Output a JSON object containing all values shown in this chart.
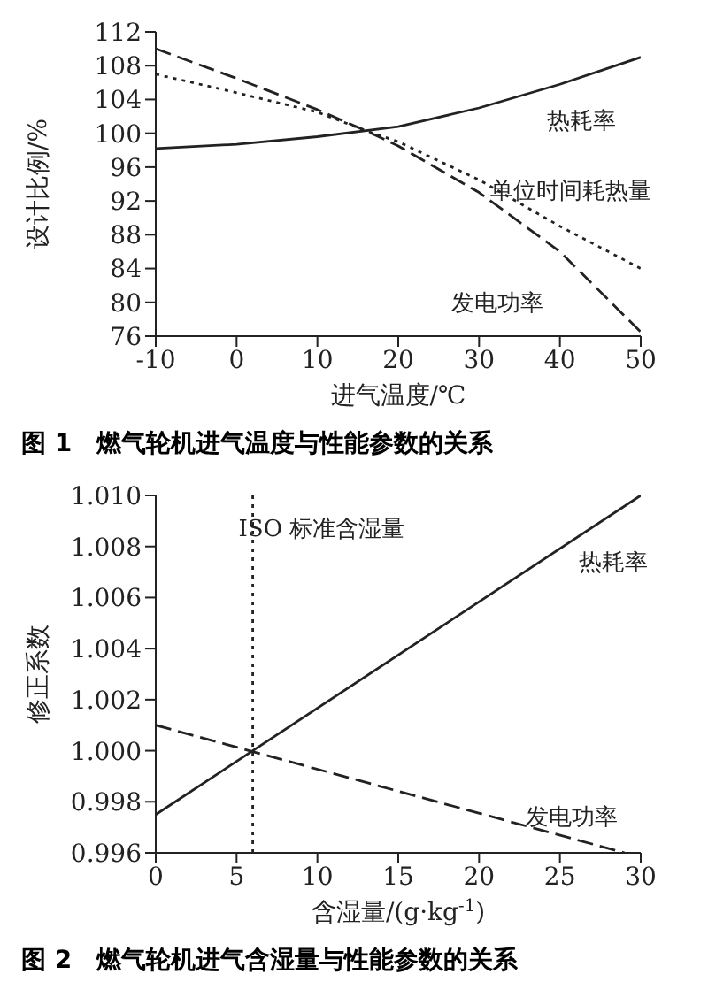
{
  "chart_data": [
    {
      "type": "line",
      "title": "图 1　燃气轮机进气温度与性能参数的关系",
      "xlabel": "进气温度/℃",
      "ylabel": "设计比例/%",
      "xlim": [
        -10,
        50
      ],
      "xticks": [
        -10,
        0,
        10,
        20,
        30,
        40,
        50
      ],
      "ylim": [
        76,
        112
      ],
      "yticks": [
        76,
        80,
        84,
        88,
        92,
        96,
        100,
        104,
        108,
        112
      ],
      "grid": false,
      "legend": false,
      "marker": "none",
      "series": [
        {
          "name": "热耗率",
          "color": "#222222",
          "line_style": "solid",
          "x": [
            -10,
            0,
            10,
            20,
            30,
            40,
            50
          ],
          "values": [
            98.2,
            98.7,
            99.6,
            100.8,
            103,
            105.8,
            109
          ]
        },
        {
          "name": "单位时间耗热量",
          "color": "#222222",
          "line_style": "dotted",
          "x": [
            -10,
            0,
            10,
            16,
            20,
            30,
            40,
            50
          ],
          "values": [
            107,
            104.8,
            102.5,
            100.3,
            99,
            94.5,
            89,
            84
          ]
        },
        {
          "name": "发电功率",
          "color": "#222222",
          "line_style": "dashed",
          "x": [
            -10,
            0,
            10,
            16,
            20,
            30,
            40,
            50
          ],
          "values": [
            110,
            106.5,
            102.8,
            100.3,
            98.5,
            93,
            86,
            76.5
          ]
        }
      ]
    },
    {
      "type": "line",
      "title": "图 2　燃气轮机进气含湿量与性能参数的关系",
      "xlabel": "含湿量/(g·kg$^{-1}$)",
      "ylabel": "修正系数",
      "xlim": [
        0,
        30
      ],
      "xticks": [
        0,
        5,
        10,
        15,
        20,
        25,
        30
      ],
      "ylim": [
        0.996,
        1.01
      ],
      "yticks": [
        {
          "value": 0.996,
          "label": "0.996"
        },
        {
          "value": 0.998,
          "label": "0.998"
        },
        {
          "value": 1,
          "label": "1.000"
        },
        {
          "value": 1.002,
          "label": "1.002"
        },
        {
          "value": 1.004,
          "label": "1.004"
        },
        {
          "value": 1.006,
          "label": "1.006"
        },
        {
          "value": 1.008,
          "label": "1.008"
        },
        {
          "value": 1.01,
          "label": "1.010"
        }
      ],
      "grid": false,
      "legend": false,
      "marker": "none",
      "ref_lines": [
        {
          "axis": "x",
          "value": 6,
          "label": "ISO 标准含湿量",
          "line_style": "dotted",
          "color": "#222222"
        }
      ],
      "series": [
        {
          "name": "热耗率",
          "color": "#222222",
          "line_style": "solid",
          "x": [
            0,
            30
          ],
          "values": [
            0.9975,
            1.01
          ]
        },
        {
          "name": "发电功率",
          "color": "#222222",
          "line_style": "dashed",
          "x": [
            0,
            29
          ],
          "values": [
            1.001,
            0.996
          ]
        }
      ]
    }
  ]
}
